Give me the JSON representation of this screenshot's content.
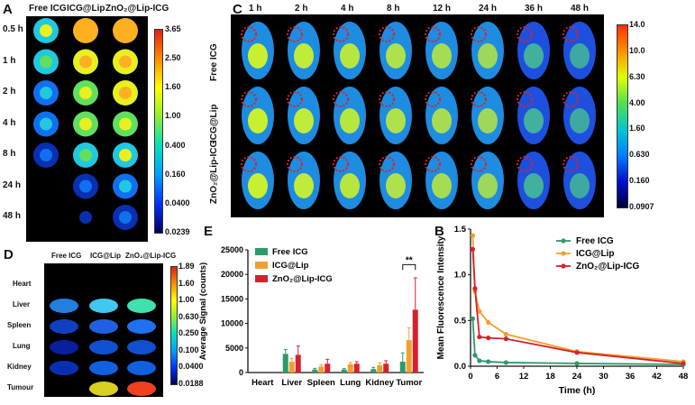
{
  "panels": {
    "A": {
      "label": "A",
      "columns": [
        "Free ICG",
        "ICG@Lip",
        "ZnO₂@Lip-ICG"
      ],
      "rows": [
        "0.5 h",
        "1 h",
        "2 h",
        "4 h",
        "8 h",
        "24 h",
        "48 h"
      ],
      "colorbar": [
        "3.65",
        "2.50",
        "1.60",
        "1.00",
        "0.400",
        "0.160",
        "0.0400",
        "0.0239"
      ]
    },
    "C": {
      "label": "C",
      "times": [
        "1 h",
        "2 h",
        "4 h",
        "8 h",
        "12 h",
        "24 h",
        "36 h",
        "48 h"
      ],
      "rows": [
        "Free ICG",
        "ICG@Lip",
        "ZnO₂@Lip-ICG"
      ],
      "colorbar": [
        "14.0",
        "10.0",
        "6.30",
        "4.00",
        "1.60",
        "0.630",
        "0.160",
        "0.0907"
      ]
    },
    "D": {
      "label": "D",
      "columns": [
        "Free ICG",
        "ICG@Lip",
        "ZnO₂@Lip-ICG"
      ],
      "organs": [
        "Heart",
        "Liver",
        "Spleen",
        "Lung",
        "Kidney",
        "Tumour"
      ],
      "colorbar": [
        "1.89",
        "1.60",
        "1.00",
        "0.630",
        "0.250",
        "0.100",
        "0.0400",
        "0.0188"
      ]
    },
    "E": {
      "label": "E"
    },
    "B": {
      "label": "B"
    }
  },
  "chart_data": [
    {
      "type": "bar",
      "panel": "E",
      "ylabel": "Average Signal (counts)",
      "xlabel": "",
      "ylim": [
        0,
        25000
      ],
      "yticks": [
        0,
        5000,
        10000,
        15000,
        20000,
        25000
      ],
      "categories": [
        "Heart",
        "Liver",
        "Spleen",
        "Lung",
        "Kidney",
        "Tumor"
      ],
      "series": [
        {
          "name": "Free ICG",
          "color": "#2e9a68",
          "values": [
            0,
            3800,
            600,
            600,
            700,
            2200
          ],
          "errors": [
            0,
            900,
            250,
            200,
            350,
            1800
          ]
        },
        {
          "name": "ICG@Lip",
          "color": "#f0a030",
          "values": [
            0,
            2200,
            1200,
            1700,
            1500,
            6600
          ],
          "errors": [
            0,
            700,
            400,
            350,
            450,
            2500
          ]
        },
        {
          "name": "ZnO₂@Lip-ICG",
          "color": "#d8202c",
          "values": [
            0,
            3600,
            1800,
            1800,
            1800,
            12800
          ],
          "errors": [
            0,
            1800,
            900,
            400,
            600,
            6500
          ]
        }
      ],
      "annotation": "**"
    },
    {
      "type": "line",
      "panel": "B",
      "xlabel": "Time (h)",
      "ylabel": "Mean Fluorescence Intensity",
      "xlim": [
        0,
        48
      ],
      "ylim": [
        0,
        1.5
      ],
      "xticks": [
        0,
        6,
        12,
        18,
        24,
        30,
        36,
        42,
        48
      ],
      "yticks": [
        0.0,
        0.5,
        1.0,
        1.5
      ],
      "series": [
        {
          "name": "Free ICG",
          "color": "#2e9a68",
          "x": [
            0.5,
            1,
            2,
            4,
            8,
            24,
            48
          ],
          "y": [
            0.52,
            0.12,
            0.06,
            0.05,
            0.04,
            0.03,
            0.02
          ]
        },
        {
          "name": "ICG@Lip",
          "color": "#f0a030",
          "x": [
            0.5,
            1,
            2,
            4,
            8,
            24,
            48
          ],
          "y": [
            1.43,
            0.82,
            0.6,
            0.48,
            0.35,
            0.16,
            0.05
          ]
        },
        {
          "name": "ZnO₂@Lip-ICG",
          "color": "#d8202c",
          "x": [
            0.5,
            1,
            2,
            4,
            8,
            24,
            48
          ],
          "y": [
            1.28,
            0.85,
            0.32,
            0.31,
            0.3,
            0.15,
            0.03
          ]
        }
      ]
    }
  ]
}
